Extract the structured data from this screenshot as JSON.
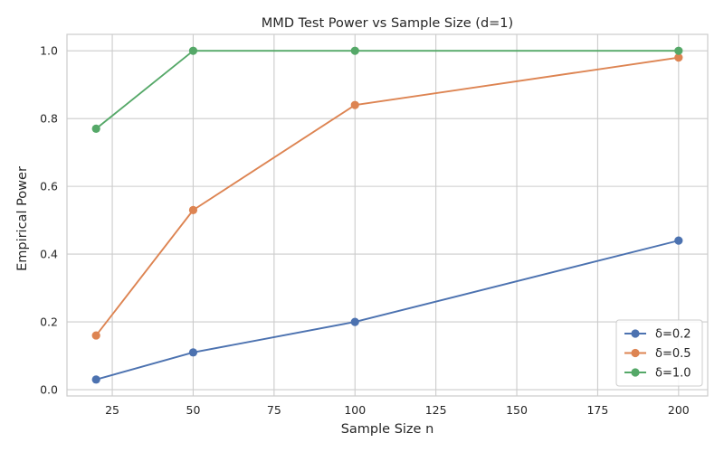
{
  "chart_data": {
    "type": "line",
    "title": "MMD Test Power vs Sample Size (d=1)",
    "xlabel": "Sample Size n",
    "ylabel": "Empirical Power",
    "xlim": [
      11,
      209
    ],
    "ylim": [
      -0.0185,
      1.0485
    ],
    "x_ticks": [
      25,
      50,
      75,
      100,
      125,
      150,
      175,
      200
    ],
    "y_ticks": [
      0.0,
      0.2,
      0.4,
      0.6,
      0.8,
      1.0
    ],
    "x_tick_labels": [
      "25",
      "50",
      "75",
      "100",
      "125",
      "150",
      "175",
      "200"
    ],
    "y_tick_labels": [
      "0.0",
      "0.2",
      "0.4",
      "0.6",
      "0.8",
      "1.0"
    ],
    "grid": true,
    "legend_position": "lower-right",
    "x": [
      20,
      50,
      100,
      200
    ],
    "series": [
      {
        "name": "δ=0.2",
        "color": "#4c72b0",
        "values": [
          0.03,
          0.11,
          0.2,
          0.44
        ]
      },
      {
        "name": "δ=0.5",
        "color": "#dd8452",
        "values": [
          0.16,
          0.53,
          0.84,
          0.98
        ]
      },
      {
        "name": "δ=1.0",
        "color": "#55a868",
        "values": [
          0.77,
          1.0,
          1.0,
          1.0
        ]
      }
    ]
  }
}
